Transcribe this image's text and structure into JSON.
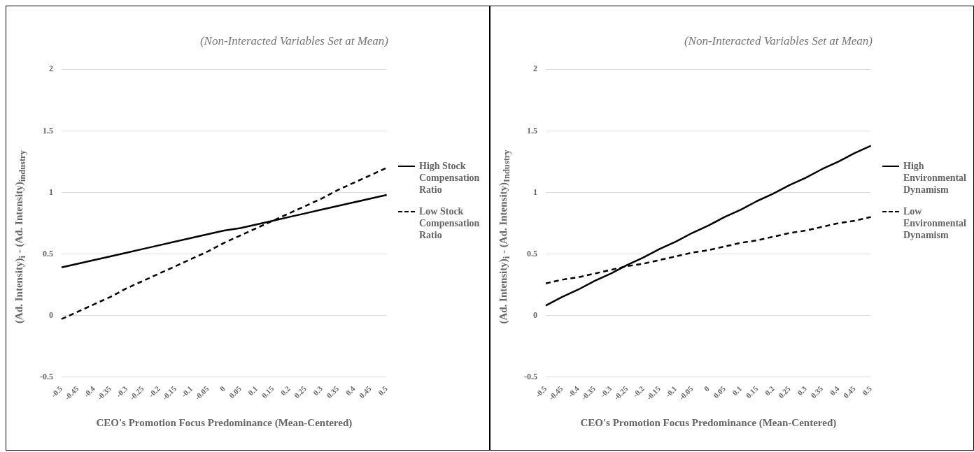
{
  "chart_data": [
    {
      "type": "line",
      "title": "(Non-Interacted Variables Set at Mean)",
      "xlabel": "CEO's Promotion Focus Predominance (Mean-Centered)",
      "ylabel": "(Ad. Intensity)$_{i}$ - (Ad. Intensity)$_{industry}$",
      "categories": [
        "-0.5",
        "-0.45",
        "-0.4",
        "-0.35",
        "-0.3",
        "-0.25",
        "-0.2",
        "-0.15",
        "-0.1",
        "-0.05",
        "0",
        "0.05",
        "0.1",
        "0.15",
        "0.2",
        "0.25",
        "0.3",
        "0.35",
        "0.4",
        "0.45",
        "0.5"
      ],
      "series": [
        {
          "name": "High Stock Compensation Ratio",
          "color": "#000000",
          "line_style": "solid",
          "values": [
            0.39,
            0.42,
            0.45,
            0.48,
            0.51,
            0.54,
            0.57,
            0.6,
            0.63,
            0.66,
            0.69,
            0.71,
            0.74,
            0.77,
            0.8,
            0.83,
            0.86,
            0.89,
            0.92,
            0.95,
            0.98
          ]
        },
        {
          "name": "Low Stock Compensation Ratio",
          "color": "#000000",
          "line_style": "dashed",
          "values": [
            -0.03,
            0.03,
            0.09,
            0.15,
            0.22,
            0.28,
            0.34,
            0.4,
            0.46,
            0.52,
            0.59,
            0.65,
            0.71,
            0.77,
            0.83,
            0.89,
            0.95,
            1.02,
            1.08,
            1.14,
            1.2
          ]
        }
      ],
      "ylim": [
        -0.5,
        2
      ],
      "yticks": [
        -0.5,
        0,
        0.5,
        1,
        1.5,
        2
      ],
      "grid": "y",
      "legend": "right",
      "marker": "none"
    },
    {
      "type": "line",
      "title": "(Non-Interacted Variables Set at Mean)",
      "xlabel": "CEO's Promotion Focus Predominance (Mean-Centered)",
      "ylabel": "(Ad. Intensity)$_{i}$ - (Ad. Intensity)$_{Industry}$",
      "categories": [
        "-0.5",
        "-0.45",
        "-0.4",
        "-0.35",
        "-0.3",
        "-0.25",
        "-0.2",
        "-0.15",
        "-0.1",
        "-0.05",
        "0",
        "0.05",
        "0.1",
        "0.15",
        "0.2",
        "0.25",
        "0.3",
        "0.35",
        "0.4",
        "0.45",
        "0.5"
      ],
      "series": [
        {
          "name": "High Environmental Dynamism",
          "color": "#000000",
          "line_style": "solid",
          "values": [
            0.08,
            0.15,
            0.21,
            0.28,
            0.34,
            0.41,
            0.47,
            0.54,
            0.6,
            0.67,
            0.73,
            0.8,
            0.86,
            0.93,
            0.99,
            1.06,
            1.12,
            1.19,
            1.25,
            1.32,
            1.38
          ]
        },
        {
          "name": "Low Environmental Dynamism",
          "color": "#000000",
          "line_style": "dashed",
          "values": [
            0.26,
            0.29,
            0.31,
            0.34,
            0.37,
            0.4,
            0.42,
            0.45,
            0.48,
            0.51,
            0.53,
            0.56,
            0.59,
            0.61,
            0.64,
            0.67,
            0.69,
            0.72,
            0.75,
            0.77,
            0.8
          ]
        }
      ],
      "ylim": [
        -0.5,
        2
      ],
      "yticks": [
        -0.5,
        0,
        0.5,
        1,
        1.5,
        2
      ],
      "grid": "y",
      "legend": "right",
      "marker": "none"
    }
  ]
}
